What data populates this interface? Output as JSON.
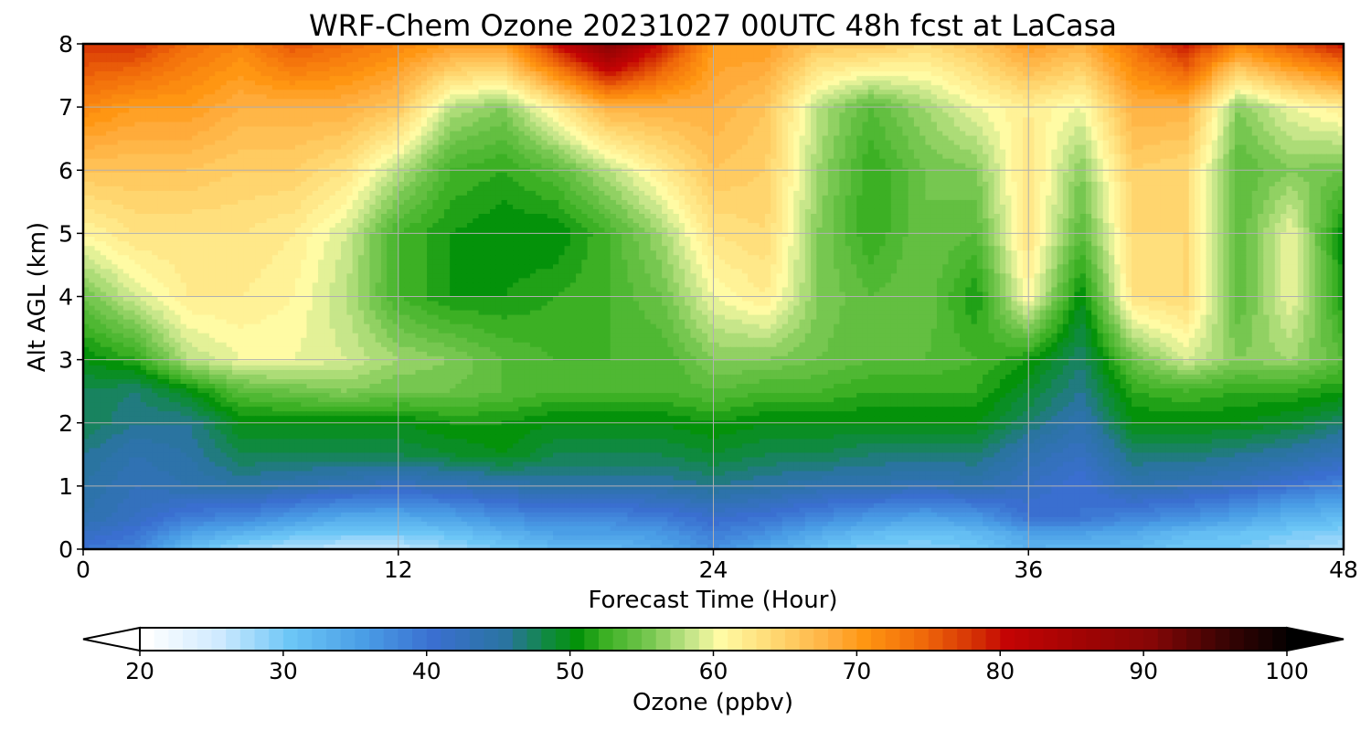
{
  "chart_data": {
    "type": "heatmap",
    "subtype": "filled-contour time-height cross section",
    "title": "WRF-Chem Ozone  20231027 00UTC 48h fcst at LaCasa",
    "xlabel": "Forecast Time (Hour)",
    "ylabel": "Alt AGL (km)",
    "xlim": [
      0,
      48
    ],
    "ylim": [
      0,
      8
    ],
    "xticks": [
      "0",
      "12",
      "24",
      "36",
      "48"
    ],
    "yticks": [
      "0",
      "1",
      "2",
      "3",
      "4",
      "5",
      "6",
      "7",
      "8"
    ],
    "grid": true,
    "hours": [
      0,
      2,
      4,
      6,
      8,
      10,
      12,
      14,
      16,
      18,
      20,
      22,
      24,
      26,
      28,
      30,
      32,
      34,
      36,
      38,
      40,
      42,
      44,
      46,
      48
    ],
    "altitudes_km": [
      0,
      0.25,
      0.5,
      1,
      1.5,
      2,
      2.5,
      3,
      4,
      5,
      6,
      7,
      8
    ],
    "ozone_ppbv": [
      [
        40,
        38,
        32,
        28,
        27,
        26,
        26,
        28,
        30,
        32,
        32,
        34,
        37,
        34,
        31,
        29,
        29,
        30,
        33,
        32,
        32,
        30,
        30,
        28,
        27
      ],
      [
        42,
        40,
        35,
        33,
        31,
        30,
        30,
        31,
        33,
        35,
        35,
        36,
        39,
        37,
        34,
        32,
        31,
        32,
        35,
        35,
        34,
        32,
        31,
        30,
        29
      ],
      [
        44,
        42,
        39,
        38,
        36,
        34,
        34,
        35,
        37,
        38,
        38,
        39,
        41,
        40,
        38,
        36,
        35,
        36,
        40,
        40,
        38,
        37,
        35,
        33,
        32
      ],
      [
        45,
        43,
        44,
        45,
        44,
        43,
        42,
        43,
        44,
        45,
        45,
        45,
        46,
        45,
        44,
        44,
        43,
        44,
        42,
        40,
        44,
        43,
        42,
        40,
        38
      ],
      [
        46,
        44,
        45,
        48,
        48,
        48,
        48,
        49,
        50,
        48,
        48,
        48,
        49,
        48,
        48,
        47,
        47,
        47,
        44,
        42,
        47,
        47,
        46,
        45,
        43
      ],
      [
        48,
        46,
        46,
        50,
        50,
        50,
        50,
        51,
        51,
        50,
        50,
        50,
        51,
        50,
        50,
        50,
        50,
        50,
        47,
        44,
        50,
        50,
        50,
        49,
        47
      ],
      [
        48,
        47,
        50,
        54,
        55,
        56,
        55,
        55,
        54,
        53,
        53,
        53,
        54,
        53,
        53,
        52,
        52,
        52,
        49,
        46,
        52,
        53,
        52,
        52,
        51
      ],
      [
        50,
        52,
        58,
        60,
        60,
        59,
        57,
        56,
        54,
        53,
        53,
        53,
        56,
        56,
        55,
        54,
        54,
        53,
        51,
        47,
        55,
        59,
        56,
        57,
        54
      ],
      [
        55,
        59,
        62,
        62,
        61,
        58,
        53,
        51,
        51,
        52,
        53,
        55,
        60,
        62,
        56,
        54,
        55,
        51,
        61,
        50,
        63,
        64,
        54,
        60,
        51
      ],
      [
        61,
        63,
        63,
        63,
        62,
        59,
        53,
        51,
        50,
        50,
        53,
        57,
        63,
        64,
        56,
        52,
        55,
        54,
        63,
        54,
        64,
        64,
        54,
        60,
        50
      ],
      [
        66,
        66,
        66,
        65,
        65,
        63,
        58,
        53,
        52,
        54,
        58,
        62,
        66,
        65,
        57,
        52,
        55,
        56,
        63,
        56,
        65,
        64,
        54,
        56,
        55
      ],
      [
        72,
        70,
        70,
        68,
        68,
        68,
        66,
        58,
        56,
        62,
        68,
        68,
        68,
        66,
        58,
        54,
        57,
        60,
        62,
        60,
        68,
        68,
        56,
        60,
        62
      ],
      [
        78,
        78,
        74,
        72,
        76,
        74,
        72,
        70,
        70,
        80,
        90,
        80,
        70,
        70,
        66,
        66,
        64,
        66,
        70,
        68,
        74,
        80,
        72,
        76,
        80
      ]
    ],
    "colorbar": {
      "label": "Ozone  (ppbv)",
      "min": 20,
      "max": 100,
      "step": 1,
      "extend": "both",
      "ticks": [
        "20",
        "30",
        "40",
        "50",
        "60",
        "70",
        "80",
        "90",
        "100"
      ],
      "color_stops": [
        [
          20,
          "#ffffff"
        ],
        [
          25,
          "#cfeaff"
        ],
        [
          30,
          "#6cc6f6"
        ],
        [
          35,
          "#4a9ee6"
        ],
        [
          40,
          "#3a6fd0"
        ],
        [
          45,
          "#2a74a0"
        ],
        [
          48,
          "#0f8a3e"
        ],
        [
          50,
          "#04920a"
        ],
        [
          52,
          "#3cb024"
        ],
        [
          55,
          "#76c750"
        ],
        [
          58,
          "#c7e68a"
        ],
        [
          60,
          "#fffba4"
        ],
        [
          64,
          "#ffd56e"
        ],
        [
          68,
          "#ffab3a"
        ],
        [
          70,
          "#ff9612"
        ],
        [
          74,
          "#f06a0a"
        ],
        [
          78,
          "#d22c04"
        ],
        [
          80,
          "#c40404"
        ],
        [
          85,
          "#a20404"
        ],
        [
          90,
          "#860606"
        ],
        [
          95,
          "#3c0404"
        ],
        [
          100,
          "#000000"
        ]
      ]
    }
  }
}
